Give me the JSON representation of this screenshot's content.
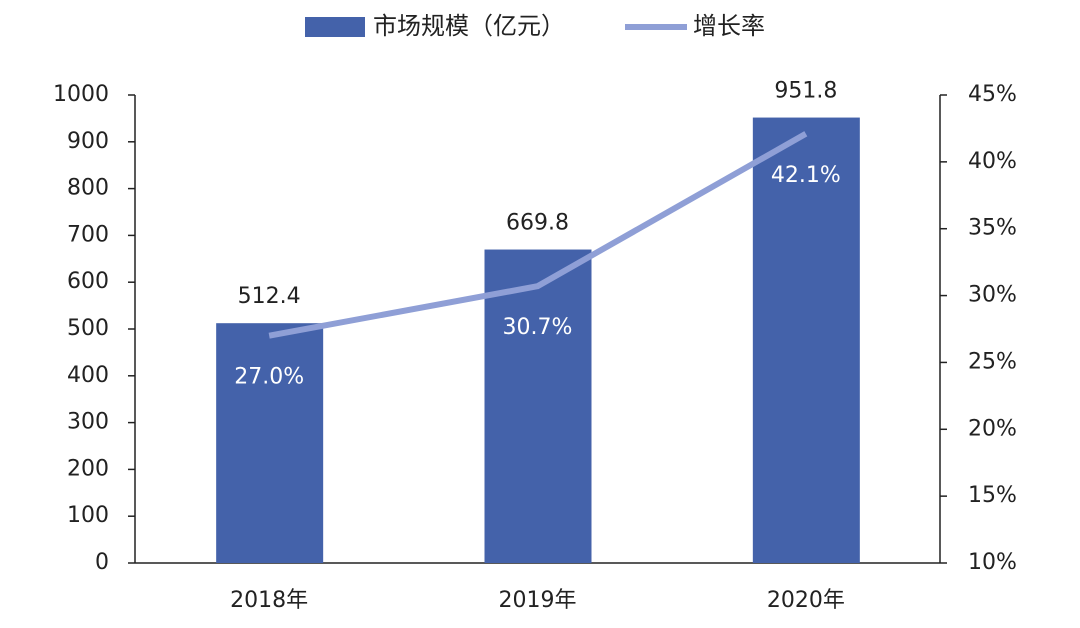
{
  "chart_data": {
    "type": "bar-line",
    "categories": [
      "2018年",
      "2019年",
      "2020年"
    ],
    "series": [
      {
        "name": "市场规模（亿元）",
        "type": "bar",
        "color": "#4462aa",
        "values": [
          512.4,
          669.8,
          951.8
        ]
      },
      {
        "name": "增长率",
        "type": "line",
        "axis": "y2",
        "color": "#8f9fd6",
        "values": [
          27.0,
          30.7,
          42.1
        ],
        "value_labels": [
          "27.0%",
          "30.7%",
          "42.1%"
        ]
      }
    ],
    "ylim": [
      0,
      1000
    ],
    "yticks": [
      0,
      100,
      200,
      300,
      400,
      500,
      600,
      700,
      800,
      900,
      1000
    ],
    "y2lim": [
      10,
      45
    ],
    "y2ticks": [
      {
        "value": 10,
        "label": "10%"
      },
      {
        "value": 15,
        "label": "15%"
      },
      {
        "value": 20,
        "label": "20%"
      },
      {
        "value": 25,
        "label": "25%"
      },
      {
        "value": 30,
        "label": "30%"
      },
      {
        "value": 35,
        "label": "35%"
      },
      {
        "value": 40,
        "label": "40%"
      },
      {
        "value": 45,
        "label": "45%"
      }
    ],
    "legend": "top"
  }
}
